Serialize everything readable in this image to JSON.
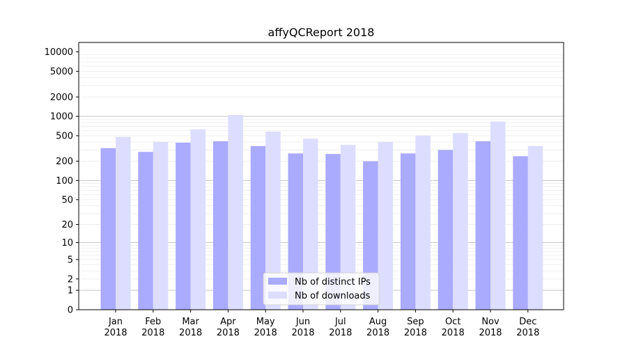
{
  "chart_data": {
    "type": "bar",
    "title": "affyQCReport 2018",
    "xlabel": "",
    "ylabel": "",
    "categories": [
      "Jan\n2018",
      "Feb\n2018",
      "Mar\n2018",
      "Apr\n2018",
      "May\n2018",
      "Jun\n2018",
      "Jul\n2018",
      "Aug\n2018",
      "Sep\n2018",
      "Oct\n2018",
      "Nov\n2018",
      "Dec\n2018"
    ],
    "series": [
      {
        "name": "Nb of distinct IPs",
        "color": "#aaaaff",
        "values": [
          320,
          280,
          390,
          410,
          345,
          265,
          260,
          200,
          265,
          300,
          410,
          240
        ]
      },
      {
        "name": "Nb of downloads",
        "color": "#ddddff",
        "values": [
          480,
          400,
          630,
          1050,
          580,
          450,
          360,
          400,
          500,
          550,
          830,
          345
        ]
      }
    ],
    "yscale": "symlog",
    "ylim": [
      0,
      14000
    ],
    "yticks": [
      0,
      1,
      2,
      5,
      10,
      20,
      50,
      100,
      200,
      500,
      1000,
      2000,
      5000,
      10000
    ],
    "grid": true,
    "legend_position": "bottom-center"
  }
}
